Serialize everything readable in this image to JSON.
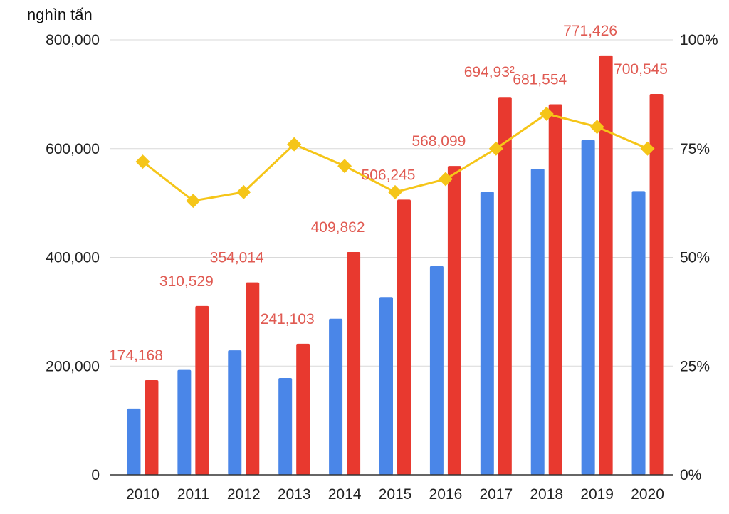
{
  "chart_data": {
    "type": "bar",
    "unit_label": "nghìn tấn",
    "categories": [
      "2010",
      "2011",
      "2012",
      "2013",
      "2014",
      "2015",
      "2016",
      "2017",
      "2018",
      "2019",
      "2020"
    ],
    "ylim": [
      0,
      800000
    ],
    "y_ticks": [
      {
        "value": 0,
        "label": "0"
      },
      {
        "value": 200000,
        "label": "200,000"
      },
      {
        "value": 400000,
        "label": "400,000"
      },
      {
        "value": 600000,
        "label": "600,000"
      },
      {
        "value": 800000,
        "label": "800,000"
      }
    ],
    "y2lim": [
      0,
      100
    ],
    "y2_ticks": [
      {
        "value": 0,
        "label": "0%"
      },
      {
        "value": 25,
        "label": "25%"
      },
      {
        "value": 50,
        "label": "50%"
      },
      {
        "value": 75,
        "label": "75%"
      },
      {
        "value": 100,
        "label": "100%"
      }
    ],
    "grid": true,
    "series": [
      {
        "type": "bar",
        "color": "#4a86e8",
        "values": [
          122000,
          193000,
          229000,
          178000,
          287000,
          327000,
          384000,
          521000,
          563000,
          616000,
          522000
        ]
      },
      {
        "type": "bar",
        "color": "#e8392f",
        "label_color": "#e05a52",
        "values": [
          174168,
          310529,
          354014,
          241103,
          409862,
          506245,
          568099,
          694932,
          681554,
          771426,
          700545
        ],
        "labels": [
          "174,168",
          "310,529",
          "354,014",
          "241,103",
          "409,862",
          "506,245",
          "568,099",
          "694,93²",
          "681,554",
          "771,426",
          "700,545"
        ]
      },
      {
        "type": "line",
        "axis": "secondary",
        "color": "#f5c518",
        "values": [
          72,
          63,
          65,
          76,
          71,
          65,
          68,
          75,
          83,
          80,
          75
        ]
      }
    ]
  }
}
